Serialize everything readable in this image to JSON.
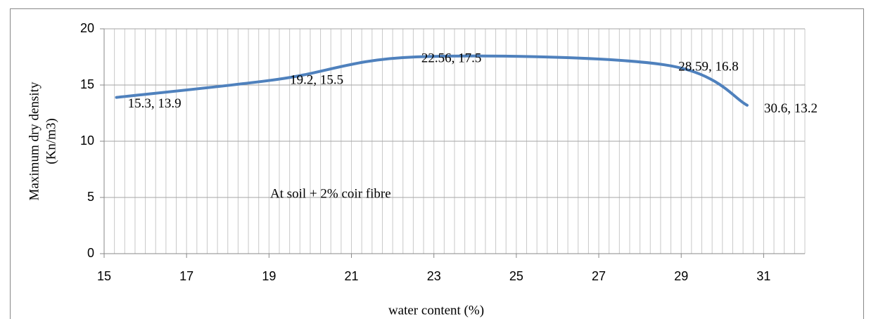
{
  "chart_data": {
    "type": "line",
    "x_label": "water content (%)",
    "y_label": [
      "Maximum dry density",
      "(Kn/m3)"
    ],
    "annotation": "At soil + 2% coir fibre",
    "series": [
      {
        "name": "At soil + 2% coir fibre",
        "color": "#4f81bd",
        "x": [
          15.3,
          19.2,
          22.56,
          28.59,
          30.6
        ],
        "values": [
          13.9,
          15.5,
          17.5,
          16.8,
          13.2
        ],
        "value_labels": [
          "15.3, 13.9",
          "19.2, 15.5",
          "22.56, 17.5",
          "28.59, 16.8",
          "30.6, 13.2"
        ]
      }
    ],
    "xlim": [
      15,
      32
    ],
    "xticks": [
      15,
      17,
      19,
      21,
      23,
      25,
      27,
      29,
      31
    ],
    "x_minor_grid": 0.25,
    "ylim": [
      0,
      20
    ],
    "yticks": [
      0,
      5,
      10,
      15,
      20
    ],
    "grid": true,
    "smooth": true
  }
}
